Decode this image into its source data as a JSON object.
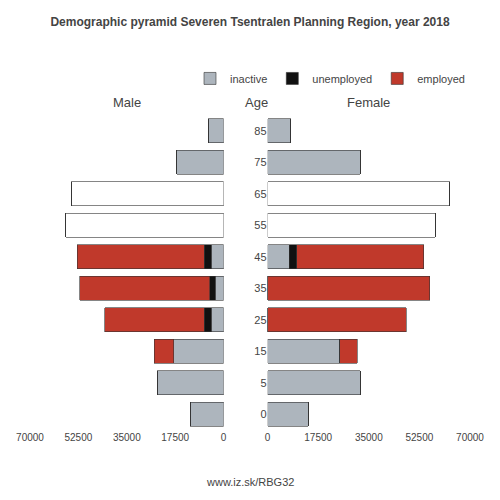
{
  "chart_data": [
    {
      "type": "bar",
      "orientation": "horizontal",
      "stacked": true,
      "title": "Demographic pyramid Severen Tsentralen Planning Region, year 2018",
      "subtitle": "Male",
      "categories": [
        0,
        5,
        15,
        25,
        35,
        45,
        55,
        65,
        75,
        85
      ],
      "series": [
        {
          "name": "inactive",
          "colors": [
            "#adb5bd",
            "#adb5bd",
            "#adb5bd",
            "#adb5bd",
            "#adb5bd",
            "#adb5bd",
            "#ffffff",
            "#ffffff",
            "#adb5bd",
            "#adb5bd"
          ],
          "values": [
            12000,
            24000,
            18000,
            4500,
            3000,
            4500,
            57000,
            55000,
            17000,
            5500
          ]
        },
        {
          "name": "unemployed",
          "color": "#111111",
          "values": [
            0,
            0,
            0,
            2500,
            2000,
            2500,
            0,
            0,
            0,
            0
          ]
        },
        {
          "name": "employed",
          "color": "#c0392b",
          "values": [
            0,
            0,
            7000,
            36000,
            47000,
            46000,
            0,
            0,
            0,
            0
          ]
        }
      ],
      "xlim": [
        70000,
        0
      ],
      "xticks": [
        70000,
        52500,
        35000,
        17500,
        0
      ],
      "grid": false,
      "tick_labels": "x",
      "annotations": [
        "www.iz.sk/RBG32"
      ]
    },
    {
      "type": "bar",
      "orientation": "horizontal",
      "stacked": true,
      "subtitle": "Female",
      "ylabel": "Age",
      "categories": [
        0,
        5,
        15,
        25,
        35,
        45,
        55,
        65,
        75,
        85
      ],
      "series": [
        {
          "name": "inactive",
          "colors": [
            "#adb5bd",
            "#adb5bd",
            "#adb5bd",
            "#adb5bd",
            "#adb5bd",
            "#adb5bd",
            "#ffffff",
            "#ffffff",
            "#adb5bd",
            "#adb5bd"
          ],
          "values": [
            14000,
            32000,
            25000,
            0,
            0,
            7500,
            58000,
            63000,
            32000,
            8000
          ]
        },
        {
          "name": "unemployed",
          "color": "#111111",
          "values": [
            0,
            0,
            0,
            0,
            0,
            2500,
            0,
            0,
            0,
            0
          ]
        },
        {
          "name": "employed",
          "color": "#c0392b",
          "values": [
            0,
            0,
            6000,
            48000,
            56000,
            44000,
            0,
            0,
            0,
            0
          ]
        }
      ],
      "xlim": [
        0,
        70000
      ],
      "xticks": [
        0,
        17500,
        35000,
        52500,
        70000
      ],
      "grid": false,
      "legend": "upper right"
    }
  ]
}
